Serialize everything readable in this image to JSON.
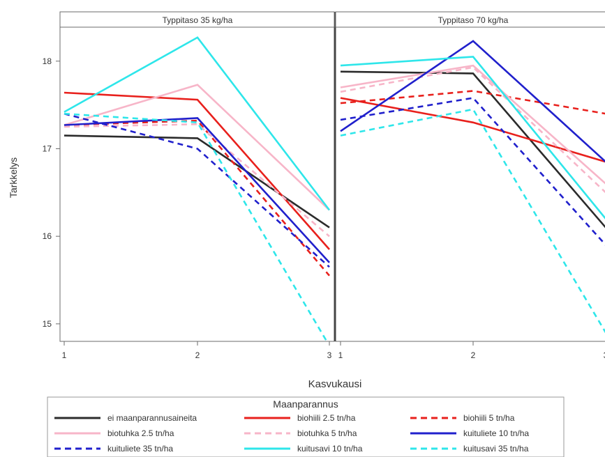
{
  "chart_data": {
    "type": "line",
    "ylabel": "Tarkkelys",
    "xlabel": "Kasvukausi",
    "x": [
      1,
      2,
      3
    ],
    "xticks": [
      "1",
      "2",
      "3"
    ],
    "yticks": [
      15,
      16,
      17,
      18
    ],
    "ylim": [
      14.8,
      18.38
    ],
    "grid": false,
    "panels": [
      {
        "title": "Typpitaso 35 kg/ha",
        "series": [
          {
            "name": "ei maanparannusaineita",
            "values": [
              17.15,
              17.12,
              16.1
            ]
          },
          {
            "name": "biohiili 2.5 tn/ha",
            "values": [
              17.64,
              17.56,
              15.85
            ]
          },
          {
            "name": "biohiili 5 tn/ha",
            "values": [
              17.27,
              17.32,
              15.55
            ]
          },
          {
            "name": "biotuhka 2.5 tn/ha",
            "values": [
              17.27,
              17.73,
              16.3
            ]
          },
          {
            "name": "biotuhka 5 tn/ha",
            "values": [
              17.25,
              17.28,
              16.0
            ]
          },
          {
            "name": "kuituliete 10 tn/ha",
            "values": [
              17.27,
              17.35,
              15.7
            ]
          },
          {
            "name": "kuituliete 35 tn/ha",
            "values": [
              17.4,
              17.0,
              15.65
            ]
          },
          {
            "name": "kuitusavi 10 tn/ha",
            "values": [
              17.42,
              18.27,
              16.3
            ]
          },
          {
            "name": "kuitusavi 35 tn/ha",
            "values": [
              17.4,
              17.3,
              14.75
            ]
          }
        ]
      },
      {
        "title": "Typpitaso 70 kg/ha",
        "series": [
          {
            "name": "ei maanparannusaineita",
            "values": [
              17.88,
              17.86,
              16.1
            ]
          },
          {
            "name": "biohiili 2.5 tn/ha",
            "values": [
              17.58,
              17.3,
              16.85
            ]
          },
          {
            "name": "biohiili 5 tn/ha",
            "values": [
              17.52,
              17.66,
              17.4
            ]
          },
          {
            "name": "biotuhka 2.5 tn/ha",
            "values": [
              17.7,
              17.95,
              16.6
            ]
          },
          {
            "name": "biotuhka 5 tn/ha",
            "values": [
              17.65,
              17.93,
              16.5
            ]
          },
          {
            "name": "kuituliete 10 tn/ha",
            "values": [
              17.2,
              18.23,
              16.85
            ]
          },
          {
            "name": "kuituliete 35 tn/ha",
            "values": [
              17.33,
              17.58,
              15.9
            ]
          },
          {
            "name": "kuitusavi 10 tn/ha",
            "values": [
              17.95,
              18.05,
              16.2
            ]
          },
          {
            "name": "kuitusavi 35 tn/ha",
            "values": [
              17.15,
              17.45,
              14.9
            ]
          }
        ]
      }
    ],
    "legend": {
      "title": "Maanparannus",
      "placement": "bottom",
      "columns": 3,
      "entries": [
        {
          "name": "ei maanparannusaineita",
          "color": "#2b2b2b",
          "dash": "solid"
        },
        {
          "name": "biohiili 2.5 tn/ha",
          "color": "#e8201c",
          "dash": "solid"
        },
        {
          "name": "biohiili 5 tn/ha",
          "color": "#e8201c",
          "dash": "dashed"
        },
        {
          "name": "biotuhka 2.5 tn/ha",
          "color": "#f7b5c8",
          "dash": "solid"
        },
        {
          "name": "biotuhka 5 tn/ha",
          "color": "#f7b5c8",
          "dash": "dashed"
        },
        {
          "name": "kuituliete 10 tn/ha",
          "color": "#2020cc",
          "dash": "solid"
        },
        {
          "name": "kuituliete 35 tn/ha",
          "color": "#2020cc",
          "dash": "dashed"
        },
        {
          "name": "kuitusavi 10 tn/ha",
          "color": "#2ee6ea",
          "dash": "solid"
        },
        {
          "name": "kuitusavi 35 tn/ha",
          "color": "#2ee6ea",
          "dash": "dashed"
        }
      ]
    }
  }
}
